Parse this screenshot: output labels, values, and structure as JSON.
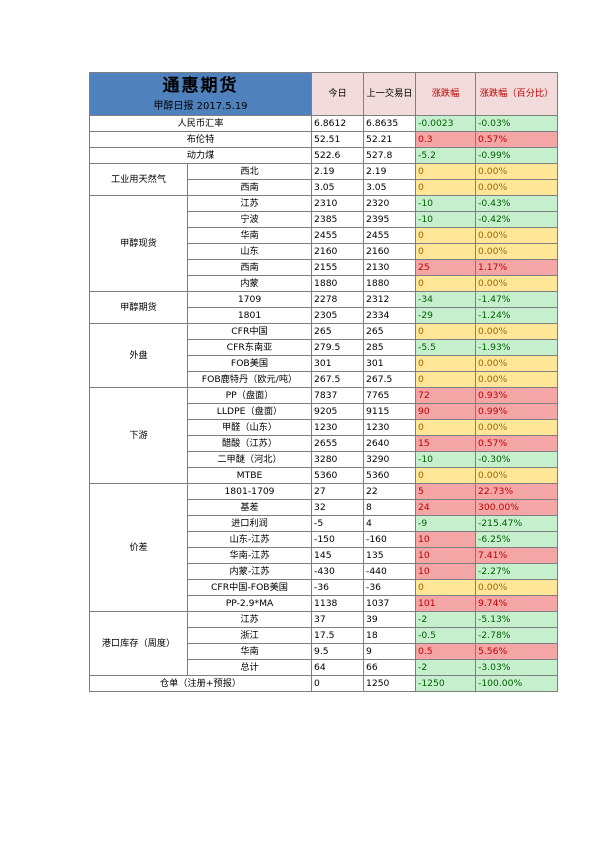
{
  "header": {
    "brand": "通惠期货",
    "subtitle": "甲醇日报 2017.5.19",
    "col_today": "今日",
    "col_prev": "上一交易日",
    "col_change": "涨跌幅",
    "col_change_pct": "涨跌幅（百分比）"
  },
  "rows": [
    {
      "cat": "人民币汇率",
      "name": "",
      "today": "6.8612",
      "prev": "6.8635",
      "chg": "-0.0023",
      "pct": "-0.03%",
      "dir": "down"
    },
    {
      "cat": "布伦特",
      "name": "",
      "today": "52.51",
      "prev": "52.21",
      "chg": "0.3",
      "pct": "0.57%",
      "dir": "up"
    },
    {
      "cat": "动力煤",
      "name": "",
      "today": "522.6",
      "prev": "527.8",
      "chg": "-5.2",
      "pct": "-0.99%",
      "dir": "down"
    },
    {
      "cat": "工业用天然气",
      "name": "西北",
      "today": "2.19",
      "prev": "2.19",
      "chg": "0",
      "pct": "0.00%",
      "dir": "flat"
    },
    {
      "cat": "",
      "name": "西南",
      "today": "3.05",
      "prev": "3.05",
      "chg": "0",
      "pct": "0.00%",
      "dir": "flat"
    },
    {
      "cat": "甲醇现货",
      "name": "江苏",
      "today": "2310",
      "prev": "2320",
      "chg": "-10",
      "pct": "-0.43%",
      "dir": "down"
    },
    {
      "cat": "",
      "name": "宁波",
      "today": "2385",
      "prev": "2395",
      "chg": "-10",
      "pct": "-0.42%",
      "dir": "down"
    },
    {
      "cat": "",
      "name": "华南",
      "today": "2455",
      "prev": "2455",
      "chg": "0",
      "pct": "0.00%",
      "dir": "flat"
    },
    {
      "cat": "",
      "name": "山东",
      "today": "2160",
      "prev": "2160",
      "chg": "0",
      "pct": "0.00%",
      "dir": "flat"
    },
    {
      "cat": "",
      "name": "西南",
      "today": "2155",
      "prev": "2130",
      "chg": "25",
      "pct": "1.17%",
      "dir": "up"
    },
    {
      "cat": "",
      "name": "内蒙",
      "today": "1880",
      "prev": "1880",
      "chg": "0",
      "pct": "0.00%",
      "dir": "flat"
    },
    {
      "cat": "甲醇期货",
      "name": "1709",
      "today": "2278",
      "prev": "2312",
      "chg": "-34",
      "pct": "-1.47%",
      "dir": "down"
    },
    {
      "cat": "",
      "name": "1801",
      "today": "2305",
      "prev": "2334",
      "chg": "-29",
      "pct": "-1.24%",
      "dir": "down"
    },
    {
      "cat": "外盘",
      "name": "CFR中国",
      "today": "265",
      "prev": "265",
      "chg": "0",
      "pct": "0.00%",
      "dir": "flat"
    },
    {
      "cat": "",
      "name": "CFR东南亚",
      "today": "279.5",
      "prev": "285",
      "chg": "-5.5",
      "pct": "-1.93%",
      "dir": "down"
    },
    {
      "cat": "",
      "name": "FOB美国",
      "today": "301",
      "prev": "301",
      "chg": "0",
      "pct": "0.00%",
      "dir": "flat"
    },
    {
      "cat": "",
      "name": "FOB鹿特丹（欧元/吨）",
      "today": "267.5",
      "prev": "267.5",
      "chg": "0",
      "pct": "0.00%",
      "dir": "flat"
    },
    {
      "cat": "下游",
      "name": "PP（盘面）",
      "today": "7837",
      "prev": "7765",
      "chg": "72",
      "pct": "0.93%",
      "dir": "up"
    },
    {
      "cat": "",
      "name": "LLDPE（盘面）",
      "today": "9205",
      "prev": "9115",
      "chg": "90",
      "pct": "0.99%",
      "dir": "up"
    },
    {
      "cat": "",
      "name": "甲醛（山东）",
      "today": "1230",
      "prev": "1230",
      "chg": "0",
      "pct": "0.00%",
      "dir": "flat"
    },
    {
      "cat": "",
      "name": "醋酸（江苏）",
      "today": "2655",
      "prev": "2640",
      "chg": "15",
      "pct": "0.57%",
      "dir": "up"
    },
    {
      "cat": "",
      "name": "二甲醚（河北）",
      "today": "3280",
      "prev": "3290",
      "chg": "-10",
      "pct": "-0.30%",
      "dir": "down"
    },
    {
      "cat": "",
      "name": "MTBE",
      "today": "5360",
      "prev": "5360",
      "chg": "0",
      "pct": "0.00%",
      "dir": "flat"
    },
    {
      "cat": "价差",
      "name": "1801-1709",
      "today": "27",
      "prev": "22",
      "chg": "5",
      "pct": "22.73%",
      "dir": "up"
    },
    {
      "cat": "",
      "name": "基差",
      "today": "32",
      "prev": "8",
      "chg": "24",
      "pct": "300.00%",
      "dir": "up"
    },
    {
      "cat": "",
      "name": "进口利润",
      "today": "-5",
      "prev": "4",
      "chg": "-9",
      "pct": "-215.47%",
      "dir": "down"
    },
    {
      "cat": "",
      "name": "山东-江苏",
      "today": "-150",
      "prev": "-160",
      "chg": "10",
      "pct": "-6.25%",
      "dir": "up",
      "pct_dir": "down"
    },
    {
      "cat": "",
      "name": "华南-江苏",
      "today": "145",
      "prev": "135",
      "chg": "10",
      "pct": "7.41%",
      "dir": "up"
    },
    {
      "cat": "",
      "name": "内蒙-江苏",
      "today": "-430",
      "prev": "-440",
      "chg": "10",
      "pct": "-2.27%",
      "dir": "up",
      "pct_dir": "down"
    },
    {
      "cat": "",
      "name": "CFR中国-FOB美国",
      "today": "-36",
      "prev": "-36",
      "chg": "0",
      "pct": "0.00%",
      "dir": "flat"
    },
    {
      "cat": "",
      "name": "PP-2.9*MA",
      "today": "1138",
      "prev": "1037",
      "chg": "101",
      "pct": "9.74%",
      "dir": "up"
    },
    {
      "cat": "港口库存（周度）",
      "name": "江苏",
      "today": "37",
      "prev": "39",
      "chg": "-2",
      "pct": "-5.13%",
      "dir": "down"
    },
    {
      "cat": "",
      "name": "浙江",
      "today": "17.5",
      "prev": "18",
      "chg": "-0.5",
      "pct": "-2.78%",
      "dir": "down"
    },
    {
      "cat": "",
      "name": "华南",
      "today": "9.5",
      "prev": "9",
      "chg": "0.5",
      "pct": "5.56%",
      "dir": "up"
    },
    {
      "cat": "",
      "name": "总计",
      "today": "64",
      "prev": "66",
      "chg": "-2",
      "pct": "-3.03%",
      "dir": "down"
    },
    {
      "cat": "仓单（注册+预报）",
      "name": "",
      "today": "0",
      "prev": "1250",
      "chg": "-1250",
      "pct": "-100.00%",
      "dir": "down"
    }
  ],
  "colors": {
    "title_bg": "#4f81bd",
    "header_bg": "#f2dcdb",
    "up_bg": "#f4a6a6",
    "down_bg": "#c6efce",
    "flat_bg": "#ffe699"
  }
}
